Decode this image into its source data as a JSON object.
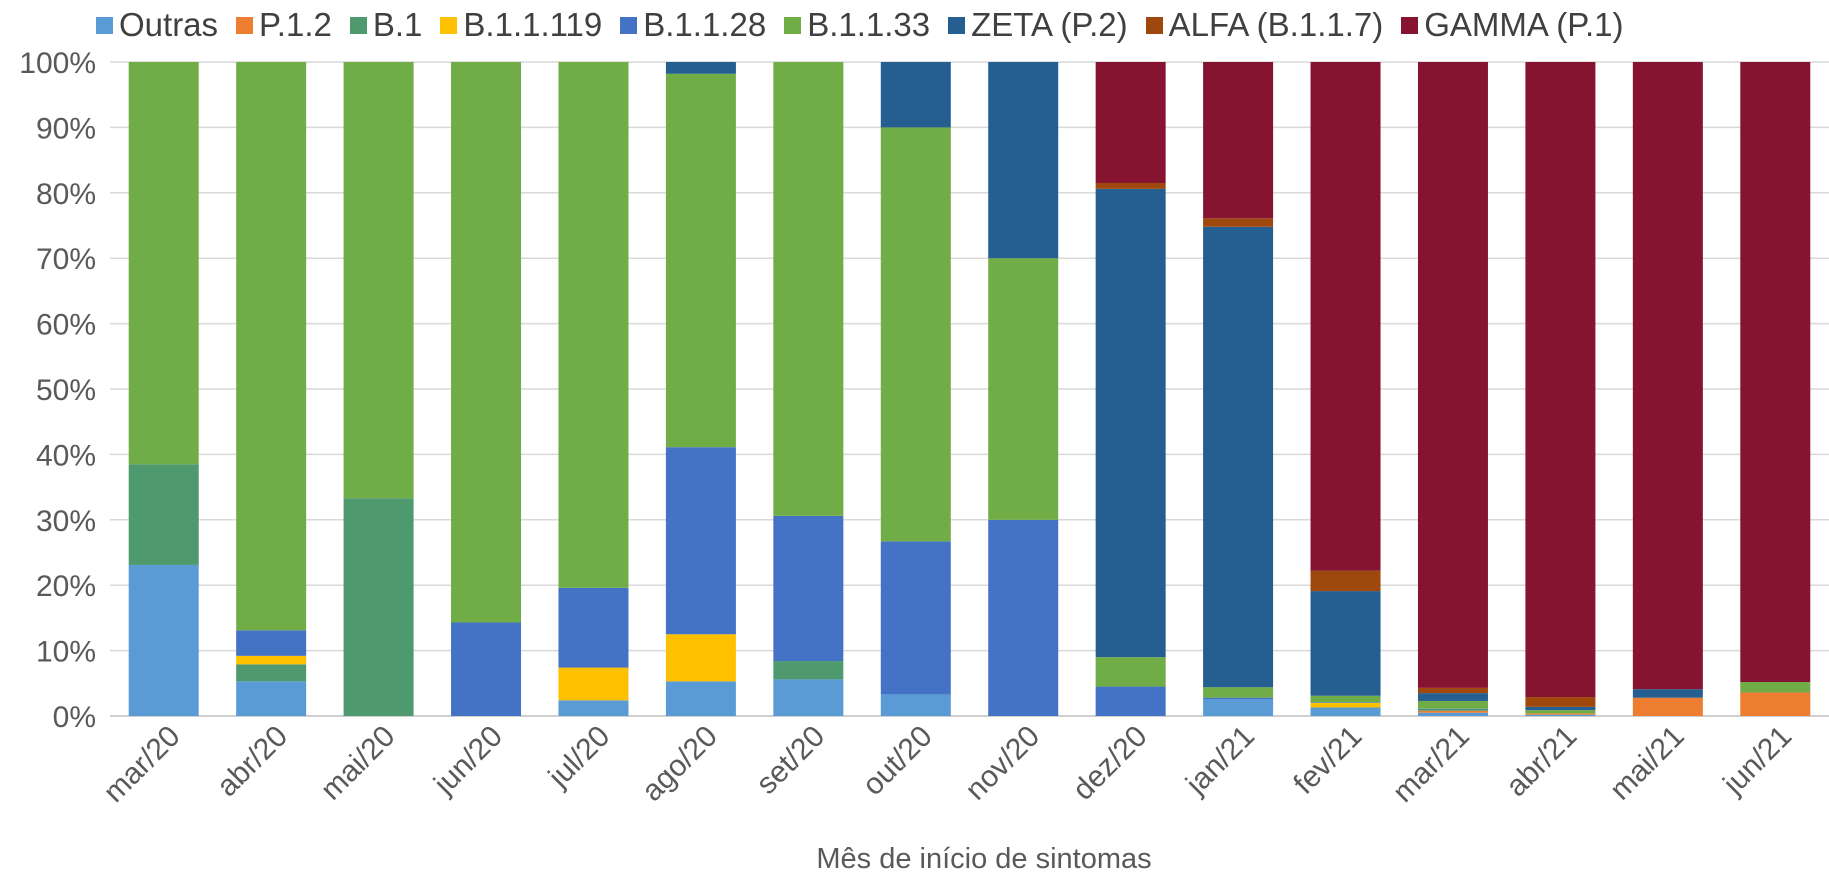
{
  "chart_data": {
    "type": "bar",
    "stacked": true,
    "percent_stacked": true,
    "title": "",
    "xlabel": "Mês de início de sintomas",
    "ylabel": "",
    "ylim": [
      0,
      100
    ],
    "y_ticks": [
      "0%",
      "10%",
      "20%",
      "30%",
      "40%",
      "50%",
      "60%",
      "70%",
      "80%",
      "90%",
      "100%"
    ],
    "grid": true,
    "legend_position": "top",
    "categories": [
      "mar/20",
      "abr/20",
      "mai/20",
      "jun/20",
      "jul/20",
      "ago/20",
      "set/20",
      "out/20",
      "nov/20",
      "dez/20",
      "jan/21",
      "fev/21",
      "mar/21",
      "abr/21",
      "mai/21",
      "jun/21"
    ],
    "series": [
      {
        "name": "Outras",
        "color": "#5b9bd5",
        "values": [
          23.1,
          5.3,
          0,
          0,
          2.4,
          5.3,
          5.6,
          3.3,
          0,
          0,
          2.6,
          1.3,
          0.5,
          0.2,
          0,
          0
        ]
      },
      {
        "name": "P.1.2",
        "color": "#ed7d31",
        "values": [
          0,
          0,
          0,
          0,
          0,
          0,
          0,
          0,
          0,
          0,
          0,
          0,
          0.3,
          0.2,
          2.8,
          3.6
        ]
      },
      {
        "name": "B.1",
        "color": "#4e9a6e",
        "values": [
          15.4,
          2.6,
          33.3,
          0,
          0,
          0,
          2.8,
          0,
          0,
          0,
          0,
          0,
          0.2,
          0,
          0,
          0
        ]
      },
      {
        "name": "B.1.1.119",
        "color": "#ffc000",
        "values": [
          0,
          1.3,
          0,
          0,
          5.0,
          7.2,
          0,
          0,
          0,
          0,
          0,
          0.7,
          0,
          0,
          0,
          0
        ]
      },
      {
        "name": "B.1.1.28",
        "color": "#4472c4",
        "values": [
          0,
          3.9,
          0,
          14.3,
          12.2,
          28.6,
          22.2,
          23.4,
          30.0,
          4.5,
          0.2,
          0.1,
          0.1,
          0,
          0,
          0
        ]
      },
      {
        "name": "B.1.1.33",
        "color": "#70ad47",
        "values": [
          61.5,
          86.9,
          66.7,
          85.7,
          80.4,
          57.1,
          69.4,
          63.3,
          40.0,
          4.5,
          1.6,
          1.0,
          1.2,
          0.5,
          0,
          1.6
        ]
      },
      {
        "name": "ZETA (P.2)",
        "color": "#255e91",
        "values": [
          0,
          0,
          0,
          0,
          0,
          1.8,
          0,
          10.0,
          30.0,
          71.6,
          70.4,
          16.0,
          1.2,
          0.5,
          1.3,
          0
        ]
      },
      {
        "name": "ALFA (B.1.1.7)",
        "color": "#9e480e",
        "values": [
          0,
          0,
          0,
          0,
          0,
          0,
          0,
          0,
          0,
          0.9,
          1.3,
          3.1,
          0.8,
          1.5,
          0,
          0
        ]
      },
      {
        "name": "GAMMA (P.1)",
        "color": "#861430",
        "values": [
          0,
          0,
          0,
          0,
          0,
          0,
          0,
          0,
          0,
          18.5,
          23.9,
          77.8,
          95.7,
          97.1,
          95.9,
          94.8
        ]
      }
    ]
  }
}
